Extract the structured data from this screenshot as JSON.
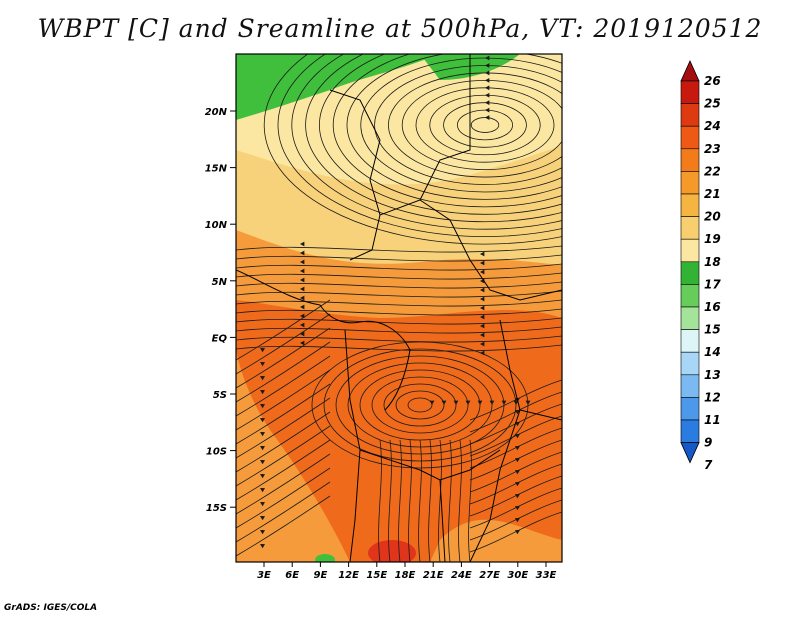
{
  "title": "WBPT [C] and Sreamline at 500hPa, VT: 2019120512",
  "credit": "GrADS: IGES/COLA",
  "map": {
    "variable": "WBPT [C]",
    "level": "500hPa",
    "valid_time": "2019120512",
    "lat_ticks": [
      "20N",
      "15N",
      "10N",
      "5N",
      "EQ",
      "5S",
      "10S",
      "15S"
    ],
    "lon_ticks": [
      "3E",
      "6E",
      "9E",
      "12E",
      "15E",
      "18E",
      "21E",
      "24E",
      "27E",
      "30E",
      "33E"
    ]
  },
  "colorbar": {
    "labels": [
      "26",
      "25",
      "24",
      "23",
      "22",
      "21",
      "20",
      "19",
      "18",
      "17",
      "16",
      "15",
      "14",
      "13",
      "12",
      "11",
      "9",
      "7"
    ],
    "colors": [
      "#a50e0e",
      "#c8190f",
      "#de3a12",
      "#ee5a16",
      "#f47b1a",
      "#f59a28",
      "#f6b441",
      "#f8cf6e",
      "#fbe7a1",
      "#33b334",
      "#66cc5a",
      "#a4e39a",
      "#def5f8",
      "#a8d6f7",
      "#7ab9f2",
      "#4c98ea",
      "#2a7ce0",
      "#1559c9"
    ]
  },
  "fields": {
    "green_zone": "#3fbf3b",
    "light_yellow_zone": "#fbe7a1",
    "yellow_zone": "#f8d27a",
    "orange_zone": "#f59b3b",
    "deep_orange_zone": "#ef6b1b",
    "red_spot": "#e0351a"
  }
}
